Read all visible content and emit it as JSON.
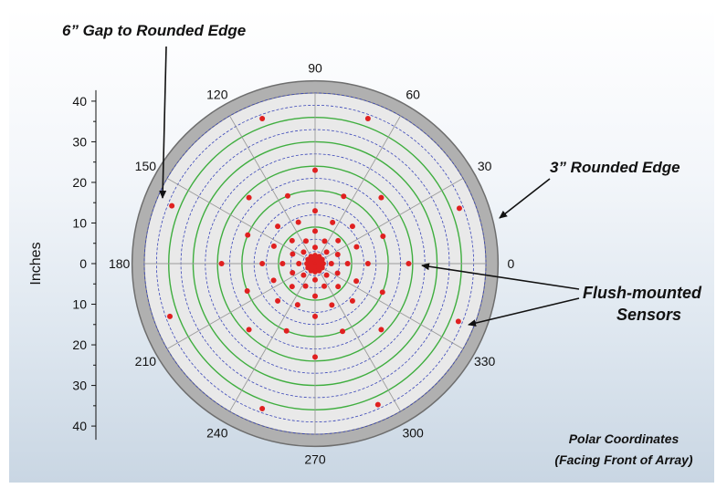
{
  "chart_data": {
    "type": "scatter",
    "coordinate_system": "polar",
    "ylabel": "Inches",
    "y_tick_labels": [
      "40",
      "30",
      "20",
      "10",
      "0",
      "10",
      "20",
      "30",
      "40"
    ],
    "angle_labels": [
      "0",
      "30",
      "60",
      "90",
      "120",
      "150",
      "180",
      "210",
      "240",
      "270",
      "300",
      "330"
    ],
    "r_range": [
      0,
      42
    ],
    "inner_radius_in": 42,
    "edge_outer_radius_in": 45,
    "ring_radii_in": [
      3,
      6,
      9,
      12,
      15,
      18,
      21,
      24,
      27,
      30,
      33,
      36,
      39,
      42
    ],
    "green_rings_in": [
      9,
      18,
      24,
      30,
      36
    ],
    "spoke_step_deg": 30,
    "series": [
      {
        "name": "Flush-mounted Sensors",
        "color": "#e02020",
        "points_r_theta": [
          [
            0,
            0
          ],
          [
            1,
            0
          ],
          [
            1,
            45
          ],
          [
            1,
            90
          ],
          [
            1,
            135
          ],
          [
            1,
            180
          ],
          [
            1,
            225
          ],
          [
            1,
            270
          ],
          [
            1,
            315
          ],
          [
            2,
            0
          ],
          [
            2,
            30
          ],
          [
            2,
            60
          ],
          [
            2,
            90
          ],
          [
            2,
            120
          ],
          [
            2,
            150
          ],
          [
            2,
            180
          ],
          [
            2,
            210
          ],
          [
            2,
            240
          ],
          [
            2,
            270
          ],
          [
            2,
            300
          ],
          [
            2,
            330
          ],
          [
            4,
            0
          ],
          [
            4,
            45
          ],
          [
            4,
            90
          ],
          [
            4,
            135
          ],
          [
            4,
            180
          ],
          [
            4,
            225
          ],
          [
            4,
            270
          ],
          [
            4,
            315
          ],
          [
            6,
            22
          ],
          [
            6,
            67
          ],
          [
            6,
            112
          ],
          [
            6,
            157
          ],
          [
            6,
            202
          ],
          [
            6,
            247
          ],
          [
            6,
            292
          ],
          [
            6,
            337
          ],
          [
            8,
            0
          ],
          [
            8,
            45
          ],
          [
            8,
            90
          ],
          [
            8,
            135
          ],
          [
            8,
            180
          ],
          [
            8,
            225
          ],
          [
            8,
            270
          ],
          [
            8,
            315
          ],
          [
            11,
            22
          ],
          [
            11,
            67
          ],
          [
            11,
            112
          ],
          [
            11,
            157
          ],
          [
            11,
            202
          ],
          [
            11,
            247
          ],
          [
            11,
            292
          ],
          [
            11,
            337
          ],
          [
            13,
            0
          ],
          [
            13,
            45
          ],
          [
            13,
            90
          ],
          [
            13,
            135
          ],
          [
            13,
            180
          ],
          [
            13,
            225
          ],
          [
            13,
            270
          ],
          [
            13,
            315
          ],
          [
            18,
            22
          ],
          [
            18,
            67
          ],
          [
            18,
            112
          ],
          [
            18,
            157
          ],
          [
            18,
            202
          ],
          [
            18,
            247
          ],
          [
            18,
            292
          ],
          [
            18,
            337
          ],
          [
            23,
            0
          ],
          [
            23,
            45
          ],
          [
            23,
            90
          ],
          [
            23,
            135
          ],
          [
            23,
            180
          ],
          [
            23,
            225
          ],
          [
            23,
            270
          ],
          [
            23,
            315
          ],
          [
            38,
            110
          ],
          [
            38,
            70
          ],
          [
            38,
            158
          ],
          [
            38,
            338
          ],
          [
            38,
            200
          ],
          [
            38,
            250
          ],
          [
            38,
            294
          ],
          [
            38,
            21
          ]
        ]
      }
    ]
  },
  "annotations": {
    "gap": "6” Gap to Rounded Edge",
    "edge": "3” Rounded Edge",
    "sensors_line1": "Flush-mounted",
    "sensors_line2": "Sensors",
    "caption_line1": "Polar Coordinates",
    "caption_line2": "(Facing Front of Array)"
  },
  "colors": {
    "edge_ring": "#b0b0b0",
    "plot_fill": "#e9e9e9",
    "grid_blue": "#3a46b8",
    "grid_green": "#3fae3f",
    "spoke": "#9a9a9a",
    "sensor": "#e02020"
  }
}
